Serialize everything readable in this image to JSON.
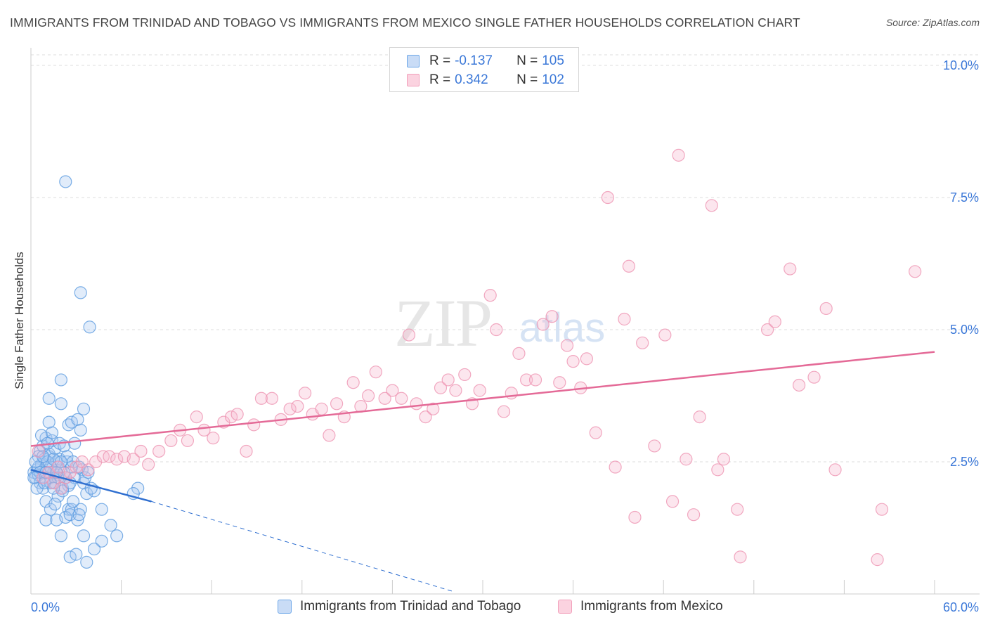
{
  "title": "IMMIGRANTS FROM TRINIDAD AND TOBAGO VS IMMIGRANTS FROM MEXICO SINGLE FATHER HOUSEHOLDS CORRELATION CHART",
  "source": "Source: ZipAtlas.com",
  "watermark": {
    "zip": "ZIP",
    "atlas": "atlas"
  },
  "stats": [
    {
      "r_label": "R =",
      "r_value": "-0.137",
      "n_label": "N =",
      "n_value": "105",
      "color": "#6fa8e8"
    },
    {
      "r_label": "R =",
      "r_value": "0.342",
      "n_label": "N =",
      "n_value": "102",
      "color": "#f2a0bb"
    }
  ],
  "legend": [
    {
      "label": "Immigrants from Trinidad and Tobago",
      "color": "#6fa8e8"
    },
    {
      "label": "Immigrants from Mexico",
      "color": "#f2a0bb"
    }
  ],
  "chart_data": {
    "type": "scatter",
    "title": "IMMIGRANTS FROM TRINIDAD AND TOBAGO VS IMMIGRANTS FROM MEXICO SINGLE FATHER HOUSEHOLDS CORRELATION CHART",
    "xlabel": "",
    "ylabel": "Single Father Households",
    "x_tick_labels": [
      "0.0%",
      "60.0%"
    ],
    "y_tick_labels": [
      "2.5%",
      "5.0%",
      "7.5%",
      "10.0%"
    ],
    "y_ticks": [
      2.5,
      5.0,
      7.5,
      10.0
    ],
    "xlim": [
      0,
      60
    ],
    "ylim": [
      0,
      10.2
    ],
    "grid": true,
    "legend_position": "bottom-center",
    "colors": {
      "blue": "#5b9be0",
      "pink": "#f2a0bb",
      "blue_line": "#2f6fd0",
      "pink_line": "#e46a97"
    },
    "series": [
      {
        "name": "Immigrants from Trinidad and Tobago",
        "r": -0.137,
        "n": 105,
        "trend": {
          "x": [
            0,
            8
          ],
          "y": [
            2.35,
            1.75
          ]
        },
        "trend_extension": {
          "x": [
            8,
            28
          ],
          "y": [
            1.75,
            0.05
          ]
        },
        "points": [
          [
            0.2,
            2.3
          ],
          [
            0.3,
            2.2
          ],
          [
            0.4,
            2.35
          ],
          [
            0.5,
            2.25
          ],
          [
            0.6,
            2.1
          ],
          [
            0.8,
            2.0
          ],
          [
            0.4,
            2.0
          ],
          [
            0.7,
            2.45
          ],
          [
            0.9,
            2.3
          ],
          [
            1.0,
            2.15
          ],
          [
            1.1,
            2.4
          ],
          [
            1.2,
            2.6
          ],
          [
            1.3,
            2.2
          ],
          [
            1.5,
            2.3
          ],
          [
            1.6,
            2.1
          ],
          [
            1.8,
            2.25
          ],
          [
            2.0,
            2.35
          ],
          [
            2.1,
            2.0
          ],
          [
            2.3,
            2.2
          ],
          [
            2.5,
            2.05
          ],
          [
            0.6,
            2.7
          ],
          [
            0.8,
            2.8
          ],
          [
            1.0,
            2.95
          ],
          [
            1.2,
            2.65
          ],
          [
            1.4,
            2.9
          ],
          [
            1.6,
            2.75
          ],
          [
            1.9,
            2.85
          ],
          [
            2.2,
            2.8
          ],
          [
            0.7,
            3.0
          ],
          [
            1.4,
            3.05
          ],
          [
            1.2,
            3.25
          ],
          [
            2.5,
            3.2
          ],
          [
            2.7,
            3.25
          ],
          [
            3.1,
            3.3
          ],
          [
            2.9,
            2.85
          ],
          [
            1.9,
            2.55
          ],
          [
            2.4,
            2.5
          ],
          [
            1.7,
            2.5
          ],
          [
            1.3,
            2.4
          ],
          [
            3.4,
            2.35
          ],
          [
            2.7,
            2.4
          ],
          [
            1.0,
            1.75
          ],
          [
            1.3,
            1.6
          ],
          [
            1.8,
            1.85
          ],
          [
            2.1,
            1.95
          ],
          [
            1.6,
            1.7
          ],
          [
            2.5,
            1.6
          ],
          [
            2.7,
            1.6
          ],
          [
            3.3,
            1.6
          ],
          [
            3.7,
            1.9
          ],
          [
            2.8,
            1.75
          ],
          [
            4.2,
            1.95
          ],
          [
            3.5,
            2.1
          ],
          [
            4.0,
            2.0
          ],
          [
            7.1,
            2.0
          ],
          [
            6.8,
            1.9
          ],
          [
            1.0,
            1.4
          ],
          [
            1.7,
            1.4
          ],
          [
            2.3,
            1.45
          ],
          [
            2.6,
            1.5
          ],
          [
            3.1,
            1.4
          ],
          [
            3.2,
            1.5
          ],
          [
            4.7,
            1.6
          ],
          [
            5.3,
            1.3
          ],
          [
            2.0,
            1.1
          ],
          [
            3.5,
            1.1
          ],
          [
            4.7,
            1.0
          ],
          [
            5.7,
            1.1
          ],
          [
            4.2,
            0.85
          ],
          [
            2.6,
            0.7
          ],
          [
            3.0,
            0.75
          ],
          [
            3.7,
            0.6
          ],
          [
            1.2,
            3.7
          ],
          [
            2.0,
            3.6
          ],
          [
            3.5,
            3.5
          ],
          [
            3.3,
            3.1
          ],
          [
            2.0,
            4.05
          ],
          [
            3.3,
            5.7
          ],
          [
            3.9,
            5.05
          ],
          [
            2.3,
            7.8
          ],
          [
            0.5,
            2.6
          ],
          [
            0.9,
            2.55
          ],
          [
            1.1,
            2.5
          ],
          [
            1.5,
            2.55
          ],
          [
            1.8,
            2.2
          ],
          [
            2.2,
            2.3
          ],
          [
            2.9,
            2.2
          ],
          [
            3.6,
            2.2
          ],
          [
            3.8,
            2.3
          ],
          [
            1.3,
            2.1
          ],
          [
            0.9,
            2.1
          ],
          [
            0.5,
            2.4
          ],
          [
            0.3,
            2.5
          ],
          [
            0.6,
            2.3
          ],
          [
            1.0,
            2.3
          ],
          [
            1.5,
            2.0
          ],
          [
            2.4,
            2.6
          ],
          [
            2.8,
            2.5
          ],
          [
            3.2,
            2.4
          ],
          [
            1.1,
            2.85
          ],
          [
            0.8,
            2.6
          ],
          [
            1.7,
            2.3
          ],
          [
            2.6,
            2.1
          ],
          [
            2.0,
            2.5
          ],
          [
            0.2,
            2.2
          ]
        ]
      },
      {
        "name": "Immigrants from Mexico",
        "r": 0.342,
        "n": 102,
        "trend": {
          "x": [
            0,
            60
          ],
          "y": [
            2.8,
            4.58
          ]
        },
        "points": [
          [
            0.5,
            2.7
          ],
          [
            0.8,
            2.2
          ],
          [
            1.2,
            2.3
          ],
          [
            1.5,
            2.1
          ],
          [
            1.8,
            2.4
          ],
          [
            2.3,
            2.2
          ],
          [
            2.6,
            2.3
          ],
          [
            3.0,
            2.4
          ],
          [
            3.4,
            2.5
          ],
          [
            3.8,
            2.35
          ],
          [
            4.3,
            2.5
          ],
          [
            4.8,
            2.6
          ],
          [
            5.2,
            2.6
          ],
          [
            5.7,
            2.55
          ],
          [
            6.2,
            2.6
          ],
          [
            6.8,
            2.55
          ],
          [
            7.3,
            2.7
          ],
          [
            7.8,
            2.45
          ],
          [
            8.5,
            2.7
          ],
          [
            9.3,
            2.9
          ],
          [
            9.9,
            3.1
          ],
          [
            10.4,
            2.9
          ],
          [
            11.0,
            3.35
          ],
          [
            11.5,
            3.1
          ],
          [
            12.1,
            2.95
          ],
          [
            12.8,
            3.25
          ],
          [
            13.3,
            3.35
          ],
          [
            13.7,
            3.4
          ],
          [
            14.3,
            2.7
          ],
          [
            14.8,
            3.2
          ],
          [
            15.3,
            3.7
          ],
          [
            16.0,
            3.7
          ],
          [
            16.6,
            3.3
          ],
          [
            17.2,
            3.5
          ],
          [
            17.7,
            3.55
          ],
          [
            18.2,
            3.8
          ],
          [
            18.7,
            3.4
          ],
          [
            19.3,
            3.5
          ],
          [
            19.8,
            3.0
          ],
          [
            20.3,
            3.6
          ],
          [
            20.8,
            3.35
          ],
          [
            21.4,
            4.0
          ],
          [
            21.9,
            3.55
          ],
          [
            22.4,
            3.75
          ],
          [
            22.9,
            4.2
          ],
          [
            23.5,
            3.7
          ],
          [
            24.0,
            3.85
          ],
          [
            24.6,
            3.7
          ],
          [
            25.1,
            4.9
          ],
          [
            25.6,
            3.6
          ],
          [
            26.2,
            3.35
          ],
          [
            26.7,
            3.5
          ],
          [
            27.2,
            3.9
          ],
          [
            27.7,
            4.05
          ],
          [
            28.2,
            3.85
          ],
          [
            28.8,
            4.15
          ],
          [
            29.3,
            3.6
          ],
          [
            29.8,
            3.85
          ],
          [
            30.5,
            5.65
          ],
          [
            30.9,
            5.0
          ],
          [
            31.4,
            3.45
          ],
          [
            31.9,
            3.8
          ],
          [
            32.4,
            4.55
          ],
          [
            32.9,
            4.05
          ],
          [
            33.5,
            4.05
          ],
          [
            34.0,
            5.1
          ],
          [
            34.6,
            5.25
          ],
          [
            35.1,
            4.0
          ],
          [
            35.6,
            4.7
          ],
          [
            36.0,
            4.4
          ],
          [
            36.5,
            3.9
          ],
          [
            36.9,
            4.45
          ],
          [
            37.5,
            3.05
          ],
          [
            38.3,
            7.5
          ],
          [
            38.8,
            2.4
          ],
          [
            39.4,
            5.2
          ],
          [
            39.7,
            6.2
          ],
          [
            40.1,
            1.45
          ],
          [
            40.6,
            4.75
          ],
          [
            41.4,
            2.8
          ],
          [
            42.1,
            4.9
          ],
          [
            42.6,
            1.75
          ],
          [
            43.0,
            8.3
          ],
          [
            43.5,
            2.55
          ],
          [
            44.0,
            1.5
          ],
          [
            44.4,
            3.35
          ],
          [
            45.2,
            7.35
          ],
          [
            45.6,
            2.35
          ],
          [
            46.0,
            2.55
          ],
          [
            46.9,
            1.6
          ],
          [
            47.1,
            0.7
          ],
          [
            48.9,
            5.0
          ],
          [
            49.4,
            5.15
          ],
          [
            50.4,
            6.15
          ],
          [
            51.0,
            3.95
          ],
          [
            52.0,
            4.1
          ],
          [
            52.8,
            5.4
          ],
          [
            53.4,
            2.35
          ],
          [
            56.2,
            0.65
          ],
          [
            56.5,
            1.6
          ],
          [
            58.7,
            6.1
          ],
          [
            2.0,
            2.0
          ]
        ]
      }
    ]
  }
}
